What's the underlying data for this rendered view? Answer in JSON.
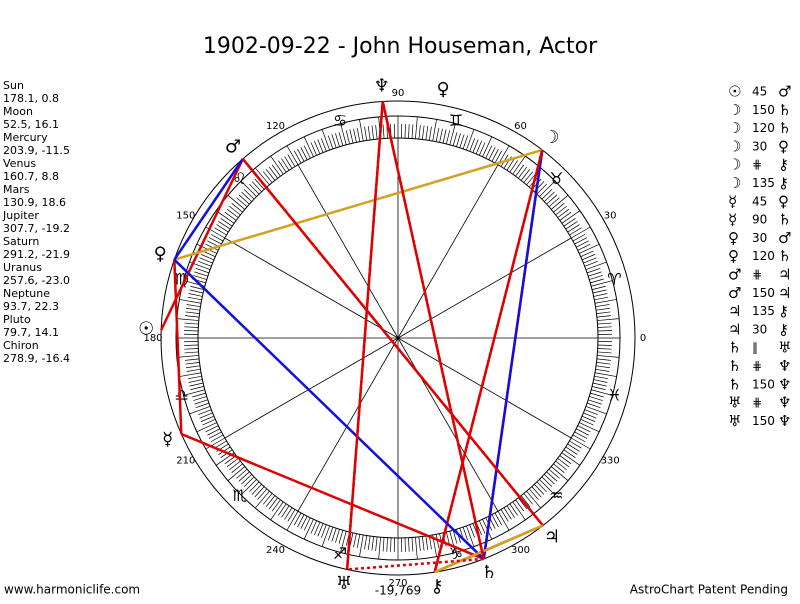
{
  "header": {
    "title": "1902-09-22 - John Houseman, Actor"
  },
  "planets": [
    {
      "name": "Sun",
      "coords": "178.1, 0.8",
      "glyph": "☉"
    },
    {
      "name": "Moon",
      "coords": "52.5, 16.1",
      "glyph": "☽"
    },
    {
      "name": "Mercury",
      "coords": "203.9, -11.5",
      "glyph": "☿"
    },
    {
      "name": "Venus",
      "coords": "160.7, 8.8",
      "glyph": "♀"
    },
    {
      "name": "Mars",
      "coords": "130.9, 18.6",
      "glyph": "♂"
    },
    {
      "name": "Jupiter",
      "coords": "307.7, -19.2",
      "glyph": "♃"
    },
    {
      "name": "Saturn",
      "coords": "291.2, -21.9",
      "glyph": "♄"
    },
    {
      "name": "Uranus",
      "coords": "257.6, -23.0",
      "glyph": "♅"
    },
    {
      "name": "Neptune",
      "coords": "93.7, 22.3",
      "glyph": "♆"
    },
    {
      "name": "Pluto",
      "coords": "79.7, 14.1",
      "glyph": "♀"
    },
    {
      "name": "Chiron",
      "coords": "278.9, -16.4",
      "glyph": "⚷"
    }
  ],
  "signs": [
    "♈",
    "♉",
    "♊",
    "♋",
    "♌",
    "♍",
    "♎",
    "♏",
    "♐",
    "♑",
    "♒",
    "♓"
  ],
  "degree_labels": [
    "0",
    "30",
    "60",
    "90",
    "120",
    "150",
    "180",
    "210",
    "240",
    "270",
    "300",
    "330"
  ],
  "aspects": [
    {
      "p1": "☉",
      "aspect": "45",
      "p2": "♂",
      "color": "#e00000",
      "dash": false
    },
    {
      "p1": "☽",
      "aspect": "150",
      "p2": "♄",
      "color": "#e00000",
      "dash": false
    },
    {
      "p1": "☽",
      "aspect": "120",
      "p2": "♄",
      "color": "#1010e0",
      "dash": false
    },
    {
      "p1": "☽",
      "aspect": "30",
      "p2": "♀",
      "color": "#d4a020",
      "dash": false
    },
    {
      "p1": "☽",
      "aspect": "⋕",
      "p2": "⚷",
      "color": "#e00000",
      "dash": true
    },
    {
      "p1": "☽",
      "aspect": "135",
      "p2": "⚷",
      "color": "#e00000",
      "dash": false
    },
    {
      "p1": "☿",
      "aspect": "45",
      "p2": "♀",
      "color": "#e00000",
      "dash": false
    },
    {
      "p1": "☿",
      "aspect": "90",
      "p2": "♄",
      "color": "#e00000",
      "dash": false
    },
    {
      "p1": "♀",
      "aspect": "30",
      "p2": "♂",
      "color": "#1010e0",
      "dash": false
    },
    {
      "p1": "♀",
      "aspect": "120",
      "p2": "♄",
      "color": "#1010e0",
      "dash": false
    },
    {
      "p1": "♂",
      "aspect": "⋕",
      "p2": "♃",
      "color": "#e00000",
      "dash": true
    },
    {
      "p1": "♂",
      "aspect": "150",
      "p2": "♃",
      "color": "#e00000",
      "dash": false
    },
    {
      "p1": "♃",
      "aspect": "135",
      "p2": "⚷",
      "color": "#e00000",
      "dash": false
    },
    {
      "p1": "♃",
      "aspect": "30",
      "p2": "⚷",
      "color": "#d4a020",
      "dash": false
    },
    {
      "p1": "♄",
      "aspect": "∥",
      "p2": "♅",
      "color": "#e00000",
      "dash": true
    },
    {
      "p1": "♄",
      "aspect": "⋕",
      "p2": "♆",
      "color": "#e00000",
      "dash": true
    },
    {
      "p1": "♄",
      "aspect": "150",
      "p2": "♆",
      "color": "#e00000",
      "dash": false
    },
    {
      "p1": "♅",
      "aspect": "⋕",
      "p2": "♆",
      "color": "#e00000",
      "dash": true
    },
    {
      "p1": "♅",
      "aspect": "150",
      "p2": "♆",
      "color": "#e00000",
      "dash": false
    }
  ],
  "center_label": "-19,769",
  "footer": {
    "left": "www.harmoniclife.com",
    "right": "AstroChart Patent Pending"
  }
}
